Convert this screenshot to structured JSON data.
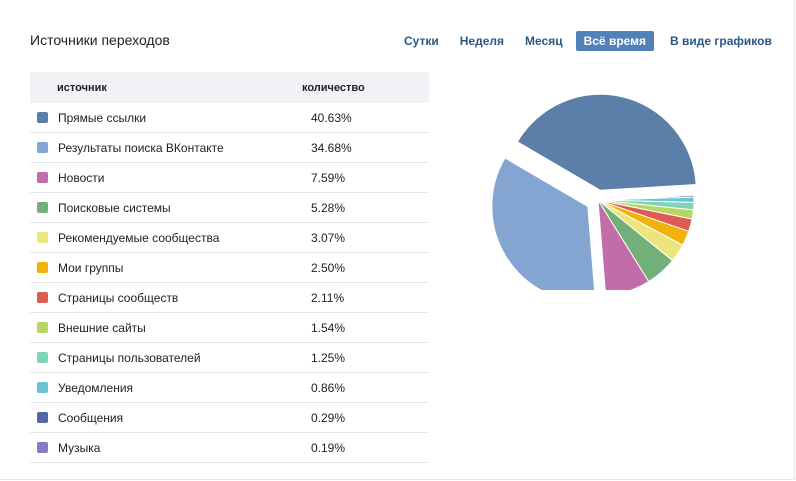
{
  "header": {
    "title": "Источники переходов",
    "tabs": [
      {
        "label": "Сутки",
        "active": false
      },
      {
        "label": "Неделя",
        "active": false
      },
      {
        "label": "Месяц",
        "active": false
      },
      {
        "label": "Всё время",
        "active": true
      },
      {
        "label": "В виде графиков",
        "active": false
      }
    ]
  },
  "table": {
    "col_source": "источник",
    "col_count": "количество"
  },
  "chart_data": {
    "type": "pie",
    "title": "",
    "series": [
      {
        "name": "Прямые ссылки",
        "label": "40.63%",
        "value": 40.63,
        "color": "#5b7fa9"
      },
      {
        "name": "Результаты поиска ВКонтакте",
        "label": "34.68%",
        "value": 34.68,
        "color": "#84a4d2"
      },
      {
        "name": "Новости",
        "label": "7.59%",
        "value": 7.59,
        "color": "#c26ca9"
      },
      {
        "name": "Поисковые системы",
        "label": "5.28%",
        "value": 5.28,
        "color": "#72b07a"
      },
      {
        "name": "Рекомендуемые сообщества",
        "label": "3.07%",
        "value": 3.07,
        "color": "#ebe67b"
      },
      {
        "name": "Мои группы",
        "label": "2.50%",
        "value": 2.5,
        "color": "#f3b10c"
      },
      {
        "name": "Страницы сообществ",
        "label": "2.11%",
        "value": 2.11,
        "color": "#dc5b53"
      },
      {
        "name": "Внешние сайты",
        "label": "1.54%",
        "value": 1.54,
        "color": "#b9d663"
      },
      {
        "name": "Страницы пользователей",
        "label": "1.25%",
        "value": 1.25,
        "color": "#7ed4b4"
      },
      {
        "name": "Уведомления",
        "label": "0.86%",
        "value": 0.86,
        "color": "#6ac4d7"
      },
      {
        "name": "Сообщения",
        "label": "0.29%",
        "value": 0.29,
        "color": "#5466a8"
      },
      {
        "name": "Музыка",
        "label": "0.19%",
        "value": 0.19,
        "color": "#8a78c9"
      }
    ]
  }
}
